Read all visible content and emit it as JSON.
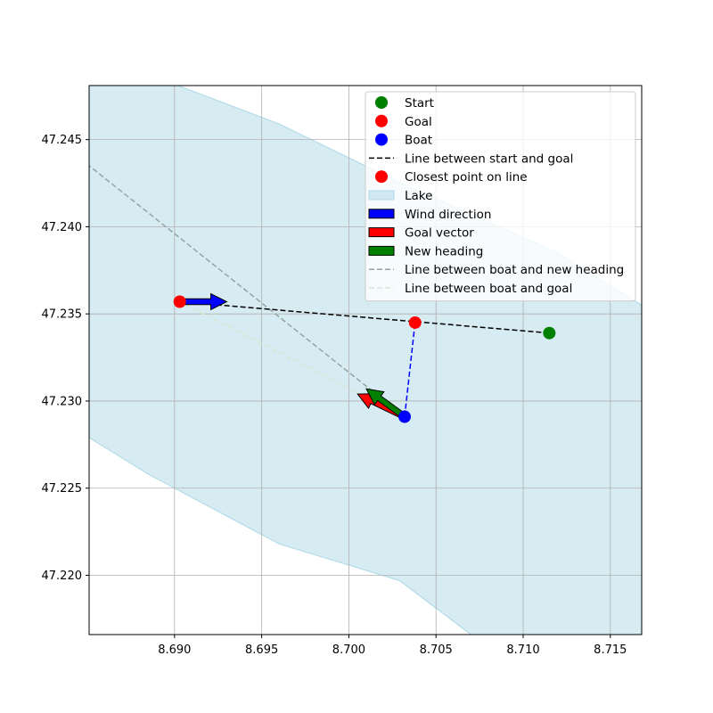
{
  "chart_data": {
    "type": "scatter",
    "title": "",
    "xlabel": "",
    "ylabel": "",
    "xlim": [
      8.6851,
      8.7168
    ],
    "ylim": [
      47.2166,
      47.2481
    ],
    "grid": true,
    "legend_position": "upper right",
    "xticks": [
      "8.690",
      "8.695",
      "8.700",
      "8.705",
      "8.710",
      "8.715"
    ],
    "yticks": [
      "47.220",
      "47.225",
      "47.230",
      "47.235",
      "47.240",
      "47.245"
    ],
    "lake": {
      "color": "#add8e6",
      "polygon": [
        [
          8.6851,
          47.2481
        ],
        [
          8.6902,
          47.2481
        ],
        [
          8.696,
          47.2459
        ],
        [
          8.703,
          47.2425
        ],
        [
          8.712,
          47.2385
        ],
        [
          8.7168,
          47.2355
        ],
        [
          8.7168,
          47.2166
        ],
        [
          8.707,
          47.2166
        ],
        [
          8.7029,
          47.2197
        ],
        [
          8.696,
          47.2218
        ],
        [
          8.6885,
          47.2258
        ],
        [
          8.6851,
          47.2279
        ]
      ]
    },
    "start": {
      "x": 8.7115,
      "y": 47.2339,
      "color": "#008000"
    },
    "goal": {
      "x": 8.6903,
      "y": 47.2357,
      "color": "#ff0000"
    },
    "boat": {
      "x": 8.7032,
      "y": 47.2291,
      "color": "#0000ff"
    },
    "closest_point": {
      "x": 8.7038,
      "y": 47.2345,
      "color": "#ff0000"
    },
    "line_start_goal": {
      "from": [
        8.7115,
        47.2339
      ],
      "to": [
        8.6903,
        47.2357
      ],
      "color": "#000000"
    },
    "line_boat_closest": {
      "from": [
        8.7032,
        47.2291
      ],
      "to": [
        8.7038,
        47.2345
      ],
      "color": "#0000ff"
    },
    "line_boat_heading": {
      "from": [
        8.7032,
        47.2291
      ],
      "to": [
        8.6851,
        47.2435
      ],
      "color": "#95a5a6"
    },
    "line_boat_goal": {
      "from": [
        8.7032,
        47.2291
      ],
      "to": [
        8.6903,
        47.2357
      ],
      "color": "#d5e8d4"
    },
    "arrows": [
      {
        "name": "Wind direction",
        "from": [
          8.6903,
          47.2357
        ],
        "to": [
          8.693,
          47.2357
        ],
        "color": "#0000ff"
      },
      {
        "name": "Goal vector",
        "from": [
          8.7032,
          47.2291
        ],
        "to": [
          8.7005,
          47.2304
        ],
        "color": "#ff0000"
      },
      {
        "name": "New heading",
        "from": [
          8.7032,
          47.2291
        ],
        "to": [
          8.701,
          47.2307
        ],
        "color": "#008000"
      }
    ],
    "legend": [
      {
        "label": "Start",
        "kind": "marker",
        "color": "#008000"
      },
      {
        "label": "Goal",
        "kind": "marker",
        "color": "#ff0000"
      },
      {
        "label": "Boat",
        "kind": "marker",
        "color": "#0000ff"
      },
      {
        "label": "Line between start and goal",
        "kind": "dash",
        "color": "#000000"
      },
      {
        "label": "Closest point on line",
        "kind": "marker",
        "color": "#ff0000"
      },
      {
        "label": "Lake",
        "kind": "patch",
        "color": "#add8e6"
      },
      {
        "label": "Wind direction",
        "kind": "patch",
        "color": "#0000ff"
      },
      {
        "label": "Goal vector",
        "kind": "patch",
        "color": "#ff0000"
      },
      {
        "label": "New heading",
        "kind": "patch",
        "color": "#008000"
      },
      {
        "label": "Line between boat and new heading",
        "kind": "dash",
        "color": "#95a5a6"
      },
      {
        "label": "Line between boat and goal",
        "kind": "dash",
        "color": "#d5e8d4"
      }
    ]
  }
}
